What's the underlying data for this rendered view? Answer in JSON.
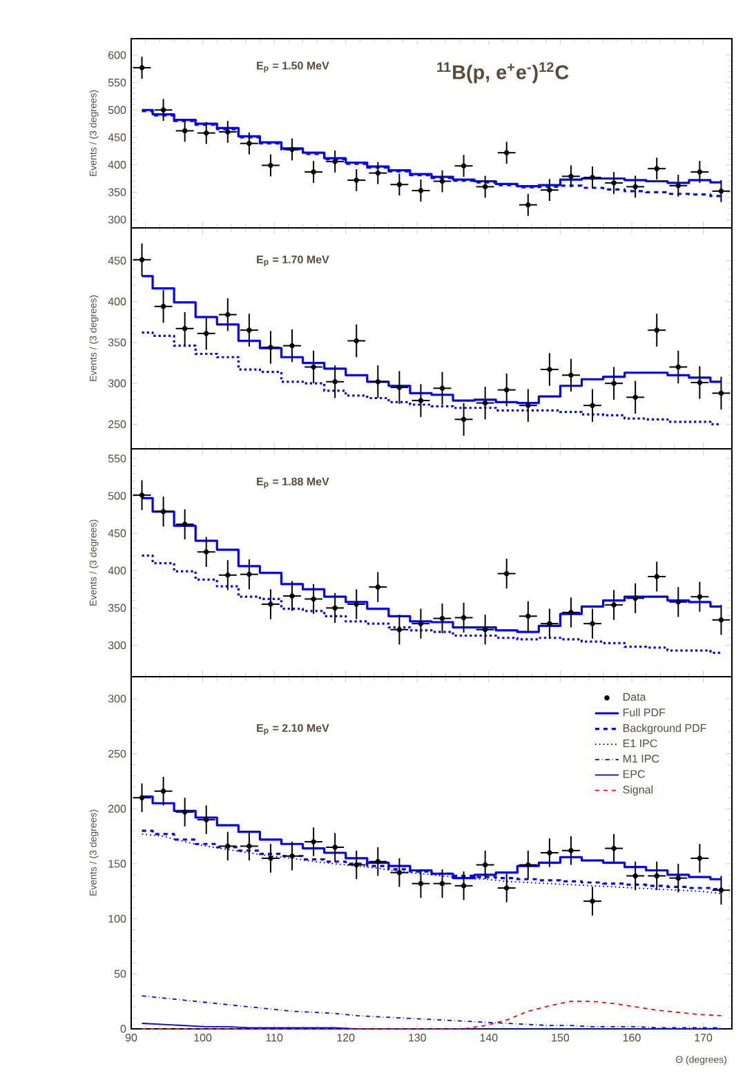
{
  "chart_data": [
    {
      "type": "step",
      "title": "E$_{p}$ = 1.50 MeV",
      "ylabel": "Events / (3 degrees)",
      "annotations": [
        "$^{11}$B(p, e$^{+}$e$^{-}$)$^{12}$C"
      ],
      "tick_labels": "y",
      "x": [
        91.5,
        94.5,
        97.5,
        100.5,
        103.5,
        106.5,
        109.5,
        112.5,
        115.5,
        118.5,
        121.5,
        124.5,
        127.5,
        130.5,
        133.5,
        136.5,
        139.5,
        142.5,
        145.5,
        148.5,
        151.5,
        154.5,
        157.5,
        160.5,
        163.5,
        166.5,
        169.5,
        172.5
      ],
      "xlim": [
        90,
        174
      ],
      "xticks": [
        90,
        100,
        110,
        120,
        130,
        140,
        150,
        160,
        170
      ],
      "ylim": [
        285,
        630
      ],
      "yticks": [
        300,
        350,
        400,
        450,
        500,
        550,
        600
      ],
      "series": [
        {
          "type": "scatter",
          "marker": "circle",
          "color": "#000000",
          "values": [
            577,
            500,
            462,
            458,
            460,
            439,
            399,
            428,
            387,
            406,
            372,
            385,
            364,
            353,
            370,
            398,
            360,
            422,
            327,
            354,
            379,
            377,
            367,
            360,
            393,
            362,
            387,
            352
          ],
          "errors": [
            20,
            20,
            20,
            20,
            20,
            20,
            20,
            20,
            20,
            20,
            20,
            20,
            20,
            20,
            20,
            20,
            20,
            20,
            20,
            20,
            20,
            20,
            20,
            20,
            20,
            20,
            20,
            20
          ],
          "xerrors": [
            1.25,
            1.25,
            1.25,
            1.25,
            1.25,
            1.25,
            1.25,
            1.25,
            1.25,
            1.25,
            1.25,
            1.25,
            1.25,
            1.25,
            1.25,
            1.25,
            1.25,
            1.25,
            1.25,
            1.25,
            1.25,
            1.25,
            1.25,
            1.25,
            1.25,
            1.25,
            1.25,
            1.25
          ]
        },
        {
          "color": "#0000ff",
          "line_style": "solid",
          "values": [
            500,
            492,
            482,
            475,
            467,
            452,
            441,
            430,
            422,
            412,
            404,
            397,
            390,
            383,
            378,
            373,
            370,
            365,
            361,
            363,
            373,
            375,
            375,
            372,
            370,
            367,
            372,
            368
          ]
        },
        {
          "color": "#0000ff",
          "line_style": "dashed",
          "values": [
            498,
            490,
            480,
            473,
            465,
            450,
            439,
            428,
            420,
            410,
            402,
            395,
            388,
            381,
            376,
            371,
            368,
            363,
            359,
            360,
            362,
            358,
            355,
            352,
            350,
            347,
            346,
            343
          ]
        }
      ]
    },
    {
      "type": "step",
      "title": "E$_{p}$ = 1.70 MeV",
      "ylabel": "Events / (3 degrees)",
      "tick_labels": "y",
      "x": [
        91.5,
        94.5,
        97.5,
        100.5,
        103.5,
        106.5,
        109.5,
        112.5,
        115.5,
        118.5,
        121.5,
        124.5,
        127.5,
        130.5,
        133.5,
        136.5,
        139.5,
        142.5,
        145.5,
        148.5,
        151.5,
        154.5,
        157.5,
        160.5,
        163.5,
        166.5,
        169.5,
        172.5
      ],
      "xlim": [
        90,
        174
      ],
      "xticks": [
        90,
        100,
        110,
        120,
        130,
        140,
        150,
        160,
        170
      ],
      "ylim": [
        220,
        490
      ],
      "yticks": [
        250,
        300,
        350,
        400,
        450
      ],
      "series": [
        {
          "type": "scatter",
          "marker": "circle",
          "color": "#000000",
          "values": [
            451,
            394,
            367,
            361,
            384,
            365,
            344,
            346,
            320,
            302,
            352,
            302,
            295,
            279,
            294,
            256,
            276,
            292,
            273,
            317,
            310,
            273,
            300,
            283,
            365,
            320,
            301,
            288
          ],
          "errors": [
            20,
            20,
            20,
            20,
            20,
            20,
            20,
            20,
            20,
            20,
            20,
            20,
            20,
            20,
            20,
            20,
            20,
            20,
            20,
            20,
            20,
            20,
            20,
            20,
            20,
            20,
            20,
            20
          ],
          "xerrors": [
            1.25,
            1.25,
            1.25,
            1.25,
            1.25,
            1.25,
            1.25,
            1.25,
            1.25,
            1.25,
            1.25,
            1.25,
            1.25,
            1.25,
            1.25,
            1.25,
            1.25,
            1.25,
            1.25,
            1.25,
            1.25,
            1.25,
            1.25,
            1.25,
            1.25,
            1.25,
            1.25,
            1.25
          ]
        },
        {
          "color": "#0000ff",
          "line_style": "solid",
          "values": [
            431,
            416,
            399,
            381,
            372,
            352,
            343,
            332,
            325,
            318,
            310,
            302,
            297,
            288,
            286,
            279,
            280,
            277,
            276,
            284,
            297,
            305,
            308,
            313,
            313,
            310,
            307,
            302
          ]
        },
        {
          "color": "#0000ff",
          "line_style": "dotted",
          "values": [
            362,
            358,
            346,
            336,
            332,
            317,
            314,
            302,
            300,
            291,
            285,
            282,
            277,
            274,
            272,
            270,
            270,
            267,
            267,
            267,
            265,
            262,
            261,
            257,
            256,
            253,
            253,
            250
          ]
        }
      ]
    },
    {
      "type": "step",
      "title": "E$_{p}$ = 1.88 MeV",
      "ylabel": "Events / (3 degrees)",
      "tick_labels": "y",
      "x": [
        91.5,
        94.5,
        97.5,
        100.5,
        103.5,
        106.5,
        109.5,
        112.5,
        115.5,
        118.5,
        121.5,
        124.5,
        127.5,
        130.5,
        133.5,
        136.5,
        139.5,
        142.5,
        145.5,
        148.5,
        151.5,
        154.5,
        157.5,
        160.5,
        163.5,
        166.5,
        169.5,
        172.5
      ],
      "xlim": [
        90,
        174
      ],
      "xticks": [
        90,
        100,
        110,
        120,
        130,
        140,
        150,
        160,
        170
      ],
      "ylim": [
        258,
        563
      ],
      "yticks": [
        300,
        350,
        400,
        450,
        500,
        550
      ],
      "series": [
        {
          "type": "scatter",
          "marker": "circle",
          "color": "#000000",
          "values": [
            501,
            479,
            462,
            425,
            394,
            395,
            355,
            366,
            362,
            350,
            355,
            378,
            321,
            329,
            336,
            337,
            321,
            396,
            339,
            329,
            344,
            329,
            354,
            363,
            392,
            358,
            365,
            334
          ],
          "errors": [
            20,
            20,
            20,
            20,
            20,
            20,
            20,
            20,
            20,
            20,
            20,
            20,
            20,
            20,
            20,
            20,
            20,
            20,
            20,
            20,
            20,
            20,
            20,
            20,
            20,
            20,
            20,
            20
          ],
          "xerrors": [
            1.25,
            1.25,
            1.25,
            1.25,
            1.25,
            1.25,
            1.25,
            1.25,
            1.25,
            1.25,
            1.25,
            1.25,
            1.25,
            1.25,
            1.25,
            1.25,
            1.25,
            1.25,
            1.25,
            1.25,
            1.25,
            1.25,
            1.25,
            1.25,
            1.25,
            1.25,
            1.25,
            1.25
          ]
        },
        {
          "color": "#0000ff",
          "line_style": "solid",
          "values": [
            497,
            479,
            460,
            440,
            428,
            406,
            397,
            382,
            375,
            365,
            358,
            349,
            339,
            332,
            331,
            324,
            324,
            320,
            318,
            326,
            342,
            352,
            360,
            365,
            365,
            360,
            358,
            352
          ]
        },
        {
          "color": "#0000ff",
          "line_style": "dotted",
          "values": [
            420,
            410,
            399,
            388,
            379,
            365,
            362,
            349,
            346,
            339,
            332,
            329,
            324,
            320,
            318,
            313,
            313,
            310,
            308,
            310,
            308,
            305,
            303,
            298,
            297,
            293,
            293,
            290
          ]
        }
      ]
    },
    {
      "type": "step",
      "title": "E$_{p}$ = 2.10 MeV",
      "ylabel": "Events / (3 degrees)",
      "xlabel": "Θ (degrees)",
      "legend": "top right",
      "x": [
        91.5,
        94.5,
        97.5,
        100.5,
        103.5,
        106.5,
        109.5,
        112.5,
        115.5,
        118.5,
        121.5,
        124.5,
        127.5,
        130.5,
        133.5,
        136.5,
        139.5,
        142.5,
        145.5,
        148.5,
        151.5,
        154.5,
        157.5,
        160.5,
        163.5,
        166.5,
        169.5,
        172.5
      ],
      "xlim": [
        90,
        174
      ],
      "xticks": [
        90,
        100,
        110,
        120,
        130,
        140,
        150,
        160,
        170
      ],
      "ylim": [
        0,
        320
      ],
      "yticks": [
        0,
        50,
        100,
        150,
        200,
        250,
        300
      ],
      "series": [
        {
          "name": "Data",
          "type": "scatter",
          "marker": "circle",
          "color": "#000000",
          "values": [
            210,
            216,
            197,
            190,
            166,
            166,
            155,
            157,
            170,
            165,
            149,
            152,
            142,
            132,
            132,
            130,
            149,
            128,
            149,
            160,
            162,
            116,
            164,
            139,
            139,
            137,
            155,
            126
          ],
          "errors": [
            13,
            13,
            13,
            13,
            13,
            13,
            13,
            13,
            13,
            13,
            13,
            13,
            13,
            13,
            13,
            13,
            13,
            13,
            13,
            13,
            13,
            13,
            13,
            13,
            13,
            13,
            13,
            13
          ],
          "xerrors": [
            1.25,
            1.25,
            1.25,
            1.25,
            1.25,
            1.25,
            1.25,
            1.25,
            1.25,
            1.25,
            1.25,
            1.25,
            1.25,
            1.25,
            1.25,
            1.25,
            1.25,
            1.25,
            1.25,
            1.25,
            1.25,
            1.25,
            1.25,
            1.25,
            1.25,
            1.25,
            1.25,
            1.25
          ]
        },
        {
          "name": "Full PDF",
          "color": "#0000ff",
          "line_style": "solid",
          "values": [
            211,
            205,
            198,
            192,
            185,
            179,
            172,
            168,
            164,
            160,
            155,
            151,
            148,
            144,
            141,
            137,
            140,
            142,
            148,
            151,
            156,
            153,
            151,
            147,
            144,
            140,
            138,
            136
          ]
        },
        {
          "name": "Background PDF",
          "color": "#0000ff",
          "line_style": "dashed",
          "values": [
            180,
            177,
            172,
            168,
            165,
            162,
            159,
            157,
            154,
            152,
            150,
            148,
            145,
            143,
            141,
            139,
            138,
            137,
            136,
            135,
            134,
            133,
            132,
            131,
            130,
            129,
            128,
            127
          ]
        },
        {
          "name": "E1 IPC",
          "type": "line",
          "color": "#0000ff",
          "line_style": "dotted",
          "values": [
            177,
            175,
            170,
            166,
            163,
            160,
            157,
            155,
            152,
            150,
            148,
            146,
            143,
            141,
            139,
            137,
            136,
            134,
            133,
            132,
            131,
            130,
            129,
            128,
            127,
            126,
            125,
            123
          ]
        },
        {
          "name": "M1 IPC",
          "type": "line",
          "color": "#0000ff",
          "line_style": "dashdot",
          "values": [
            30,
            28,
            26,
            24,
            22,
            20,
            18,
            16,
            15,
            14,
            12,
            11,
            10,
            9,
            8,
            7,
            6,
            5,
            4,
            3,
            3,
            2,
            2,
            2,
            1,
            1,
            1,
            1
          ]
        },
        {
          "name": "EPC",
          "type": "line",
          "color": "#0000ff",
          "line_style": "solid",
          "values": [
            5,
            4,
            3,
            2,
            2,
            1,
            1,
            1,
            1,
            1,
            0,
            0,
            0,
            0,
            0,
            0,
            0,
            0,
            0,
            0,
            0,
            0,
            0,
            0,
            0,
            0,
            0,
            0
          ]
        },
        {
          "name": "Signal",
          "type": "line",
          "color": "#ff0000",
          "line_style": "dashed",
          "values": [
            0,
            0,
            0,
            0,
            0,
            0,
            0,
            0,
            0,
            0,
            0,
            0,
            0,
            0,
            0,
            0,
            3,
            8,
            16,
            21,
            25,
            25,
            23,
            20,
            17,
            15,
            13,
            12
          ]
        }
      ]
    }
  ]
}
